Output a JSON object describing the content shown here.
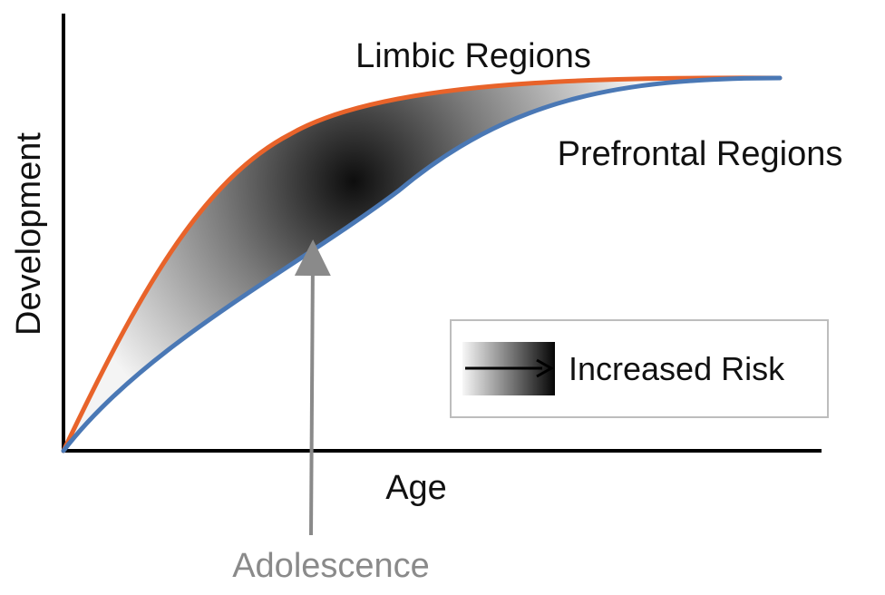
{
  "axes": {
    "x_label": "Age",
    "y_label": "Development"
  },
  "curves": {
    "limbic": {
      "label": "Limbic Regions",
      "color": "#e8632a"
    },
    "prefrontal": {
      "label": "Prefrontal Regions",
      "color": "#4a78b5"
    }
  },
  "annotation": {
    "label": "Adolescence",
    "color": "#8a8a8a"
  },
  "legend": {
    "label": "Increased Risk"
  }
}
